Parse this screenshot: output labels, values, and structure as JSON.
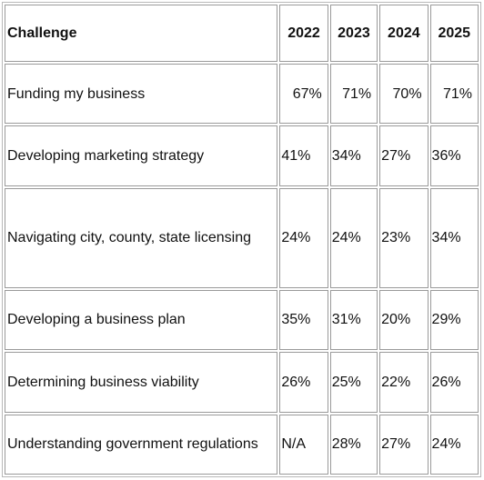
{
  "table": {
    "headers": [
      "Challenge",
      "2022",
      "2023",
      "2024",
      "2025"
    ],
    "rows": [
      {
        "challenge": "Funding my business",
        "values": [
          "67%",
          "71%",
          "70%",
          "71%"
        ]
      },
      {
        "challenge": "Developing marketing strategy",
        "values": [
          "41%",
          "34%",
          "27%",
          "36%"
        ]
      },
      {
        "challenge": "Navigating city, county, state licensing",
        "values": [
          "24%",
          "24%",
          "23%",
          "34%"
        ]
      },
      {
        "challenge": "Developing a business plan",
        "values": [
          "35%",
          "31%",
          "20%",
          "29%"
        ]
      },
      {
        "challenge": "Determining business viability",
        "values": [
          "26%",
          "25%",
          "22%",
          "26%"
        ]
      },
      {
        "challenge": "Understanding government regulations",
        "values": [
          "N/A",
          "28%",
          "27%",
          "24%"
        ]
      }
    ]
  }
}
